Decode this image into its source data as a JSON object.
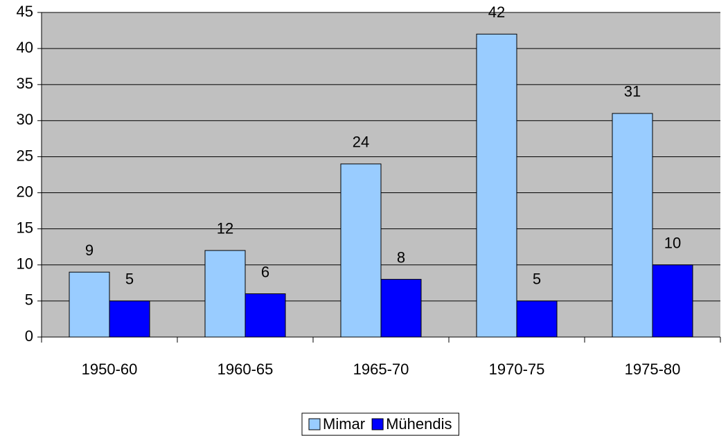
{
  "chart_data": {
    "type": "bar",
    "categories": [
      "1950-60",
      "1960-65",
      "1965-70",
      "1970-75",
      "1975-80"
    ],
    "series": [
      {
        "name": "Mimar",
        "color": "#99ccff",
        "values": [
          9,
          12,
          24,
          42,
          31
        ]
      },
      {
        "name": "Mühendis",
        "color": "#0000ff",
        "values": [
          5,
          6,
          8,
          5,
          10
        ]
      }
    ],
    "ylim": [
      0,
      45
    ],
    "yticks": [
      0,
      5,
      10,
      15,
      20,
      25,
      30,
      35,
      40,
      45
    ],
    "grid": true,
    "plot_background": "#c0c0c0",
    "legend": "bottom"
  }
}
